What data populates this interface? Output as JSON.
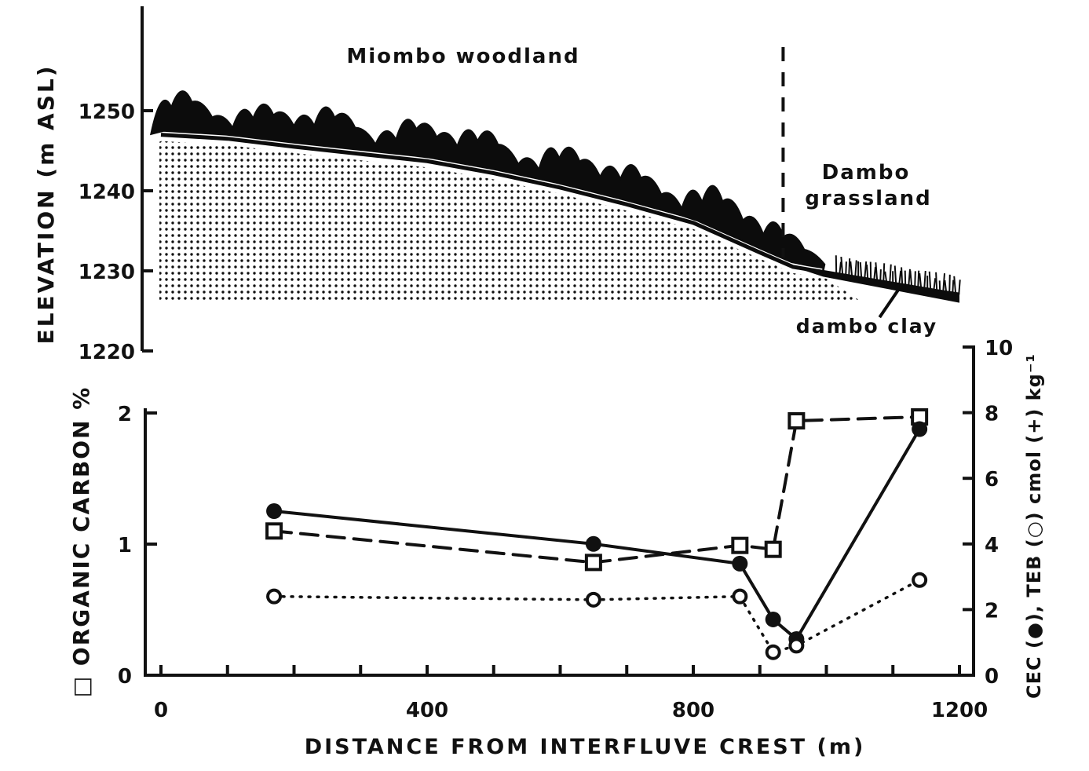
{
  "chart_data": [
    {
      "type": "area",
      "ylabel": "ELEVATION (m ASL)",
      "ylim": [
        1220,
        1260
      ],
      "y_ticks": [
        "1220",
        "1230",
        "1240",
        "1250"
      ],
      "xlim": [
        0,
        1200
      ],
      "annotations": {
        "woodland": "Miombo woodland",
        "grassland_line1": "Dambo",
        "grassland_line2": "grassland",
        "clay": "dambo clay"
      },
      "profile": {
        "x": [
          0,
          100,
          200,
          300,
          400,
          500,
          600,
          700,
          800,
          900,
          950,
          1000,
          1050,
          1100,
          1150,
          1200
        ],
        "elevation": [
          1247,
          1246.5,
          1245.5,
          1244.6,
          1243.7,
          1242.2,
          1240.4,
          1238.3,
          1236,
          1232.3,
          1230.5,
          1229.8,
          1229.1,
          1228.4,
          1227.7,
          1227
        ]
      },
      "woodland_grassland_boundary_x": 935
    },
    {
      "type": "line",
      "xlabel": "DISTANCE FROM INTERFLUVE CREST (m)",
      "ylabel_left": "□ ORGANIC CARBON %",
      "ylabel_right": "CEC (●), TEB (○) cmol (+) kg⁻¹",
      "xlim": [
        0,
        1200
      ],
      "ylim_left": [
        0,
        2
      ],
      "ylim_right": [
        0,
        10
      ],
      "x_ticks": [
        "0",
        "400",
        "800",
        "1200"
      ],
      "y_ticks_left": [
        "0",
        "1",
        "2"
      ],
      "y_ticks_right": [
        "0",
        "2",
        "4",
        "6",
        "8",
        "10"
      ],
      "series": [
        {
          "marker": "open-square",
          "axis": "left",
          "line": "dashed",
          "x": [
            170,
            650,
            870,
            920,
            955,
            1140
          ],
          "y": [
            1.1,
            0.86,
            0.99,
            0.96,
            1.94,
            1.97
          ]
        },
        {
          "marker": "filled-circle",
          "axis": "right",
          "line": "solid",
          "x": [
            170,
            650,
            870,
            920,
            955,
            1140
          ],
          "y": [
            5.0,
            4.0,
            3.4,
            1.7,
            1.1,
            7.5
          ]
        },
        {
          "marker": "open-circle",
          "axis": "right",
          "line": "dotted",
          "x": [
            170,
            650,
            870,
            920,
            955,
            1140
          ],
          "y": [
            2.4,
            2.3,
            2.4,
            0.7,
            0.9,
            2.9
          ]
        }
      ]
    }
  ]
}
